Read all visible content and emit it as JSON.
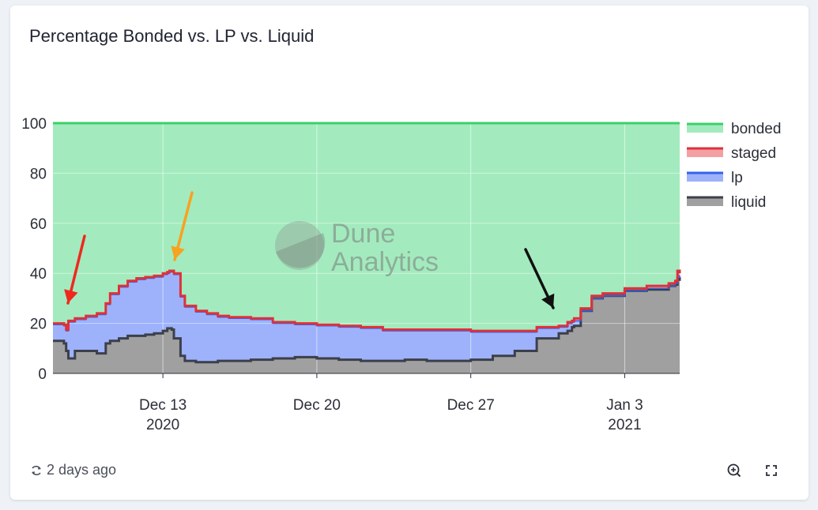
{
  "card": {
    "title": "Percentage Bonded vs. LP vs. Liquid"
  },
  "footer": {
    "updated": "2 days ago",
    "refresh_icon": "refresh-icon",
    "zoom_icon": "zoom-in-icon",
    "fullscreen_icon": "fullscreen-icon"
  },
  "watermark": {
    "line1": "Dune",
    "line2": "Analytics"
  },
  "colors": {
    "bonded_fill": "#a3ebbe",
    "bonded_line": "#3ecf6a",
    "staged_line": "#e0303a",
    "staged_fill": "#f2a0a4",
    "lp_fill": "#9db2fb",
    "lp_line": "#3562e8",
    "liquid_fill": "#a0a0a0",
    "liquid_line": "#3c3f4a"
  },
  "chart_data": {
    "type": "area",
    "stacking": "stacked to 100",
    "title": "Percentage Bonded vs. LP vs. Liquid",
    "x_range_days": [
      0,
      28.5
    ],
    "x_origin": "2020-12-08",
    "ylim": [
      0,
      100
    ],
    "y_ticks": [
      0,
      20,
      40,
      60,
      80,
      100
    ],
    "x_ticks": [
      {
        "day": 5,
        "label": "Dec 13",
        "sub": "2020"
      },
      {
        "day": 12,
        "label": "Dec 20",
        "sub": ""
      },
      {
        "day": 19,
        "label": "Dec 27",
        "sub": ""
      },
      {
        "day": 26,
        "label": "Jan 3",
        "sub": "2021"
      }
    ],
    "legend": [
      "bonded",
      "staged",
      "lp",
      "liquid"
    ],
    "legend_position": "right",
    "series": [
      {
        "name": "bonded",
        "x": [
          0,
          28.5
        ],
        "values": [
          100,
          100
        ]
      },
      {
        "name": "staged",
        "x": [
          0,
          0.5,
          0.6,
          0.65,
          0.7,
          1,
          1.5,
          2,
          2.4,
          2.6,
          3,
          3.4,
          3.8,
          4.2,
          4.6,
          5,
          5.2,
          5.3,
          5.4,
          5.5,
          5.8,
          6,
          6.5,
          7,
          7.5,
          8,
          9,
          10,
          11,
          12,
          13,
          14,
          15,
          16,
          17,
          18,
          19,
          20,
          21,
          22,
          23,
          23.4,
          23.6,
          23.7,
          24,
          24.5,
          25,
          26,
          27,
          28,
          28.3,
          28.4,
          28.5
        ],
        "values": [
          20,
          19.5,
          17.5,
          17.5,
          21,
          22,
          23,
          24,
          28,
          32,
          35,
          37,
          38,
          38.5,
          39,
          40,
          40.5,
          41,
          41,
          40,
          31,
          27,
          25,
          24,
          23,
          22.5,
          22,
          20.5,
          20,
          19.5,
          19,
          18.5,
          17.5,
          17.5,
          17.5,
          17.5,
          17,
          17,
          17,
          18.5,
          19,
          20.5,
          21,
          22,
          26,
          31,
          32,
          34,
          35,
          36,
          37,
          41,
          40
        ]
      },
      {
        "name": "lp",
        "x": [
          0,
          0.5,
          0.6,
          0.65,
          0.7,
          1,
          1.5,
          2,
          2.4,
          2.6,
          3,
          3.4,
          3.8,
          4.2,
          4.6,
          5,
          5.2,
          5.3,
          5.4,
          5.5,
          5.8,
          6,
          6.5,
          7,
          7.5,
          8,
          9,
          10,
          11,
          12,
          13,
          14,
          15,
          16,
          17,
          18,
          19,
          20,
          21,
          22,
          23,
          23.4,
          23.6,
          23.7,
          24,
          24.5,
          25,
          26,
          27,
          28,
          28.3,
          28.4,
          28.5
        ],
        "values": [
          19.5,
          19,
          17,
          17,
          20.5,
          21.5,
          22.5,
          23.5,
          27.5,
          31.5,
          34.5,
          36.5,
          37.5,
          38,
          38.5,
          39.5,
          40,
          40.5,
          40.5,
          39.5,
          30.5,
          26.5,
          24.5,
          23.5,
          22.5,
          22,
          21.5,
          20,
          19.5,
          19,
          18.5,
          18,
          17,
          17,
          17,
          17,
          16.5,
          16.5,
          16.5,
          18,
          18.5,
          20,
          20.5,
          21,
          25,
          30,
          31,
          33,
          34,
          35,
          36,
          39,
          38
        ]
      },
      {
        "name": "liquid",
        "x": [
          0,
          0.5,
          0.6,
          0.7,
          1,
          1.5,
          2,
          2.4,
          2.6,
          3,
          3.4,
          3.8,
          4.2,
          4.6,
          5,
          5.2,
          5.4,
          5.5,
          5.8,
          6,
          6.5,
          7,
          7.5,
          8,
          9,
          10,
          11,
          12,
          13,
          14,
          15,
          16,
          17,
          18,
          19,
          20,
          21,
          22,
          23,
          23.4,
          23.6,
          23.7,
          24,
          24.5,
          25,
          26,
          27,
          28,
          28.3,
          28.4,
          28.5
        ],
        "values": [
          13,
          12,
          9,
          6,
          9,
          9,
          8,
          12,
          13,
          14,
          15,
          15,
          15.5,
          16,
          17,
          18,
          17.5,
          14,
          7,
          5,
          4.5,
          4.5,
          5,
          5,
          5.5,
          6,
          6.5,
          6,
          5.5,
          5,
          5,
          5.5,
          5,
          5,
          5.5,
          7,
          9,
          14,
          16,
          17,
          18.5,
          19,
          25,
          30,
          31,
          33,
          33.5,
          35,
          35.5,
          38,
          37
        ]
      }
    ]
  }
}
